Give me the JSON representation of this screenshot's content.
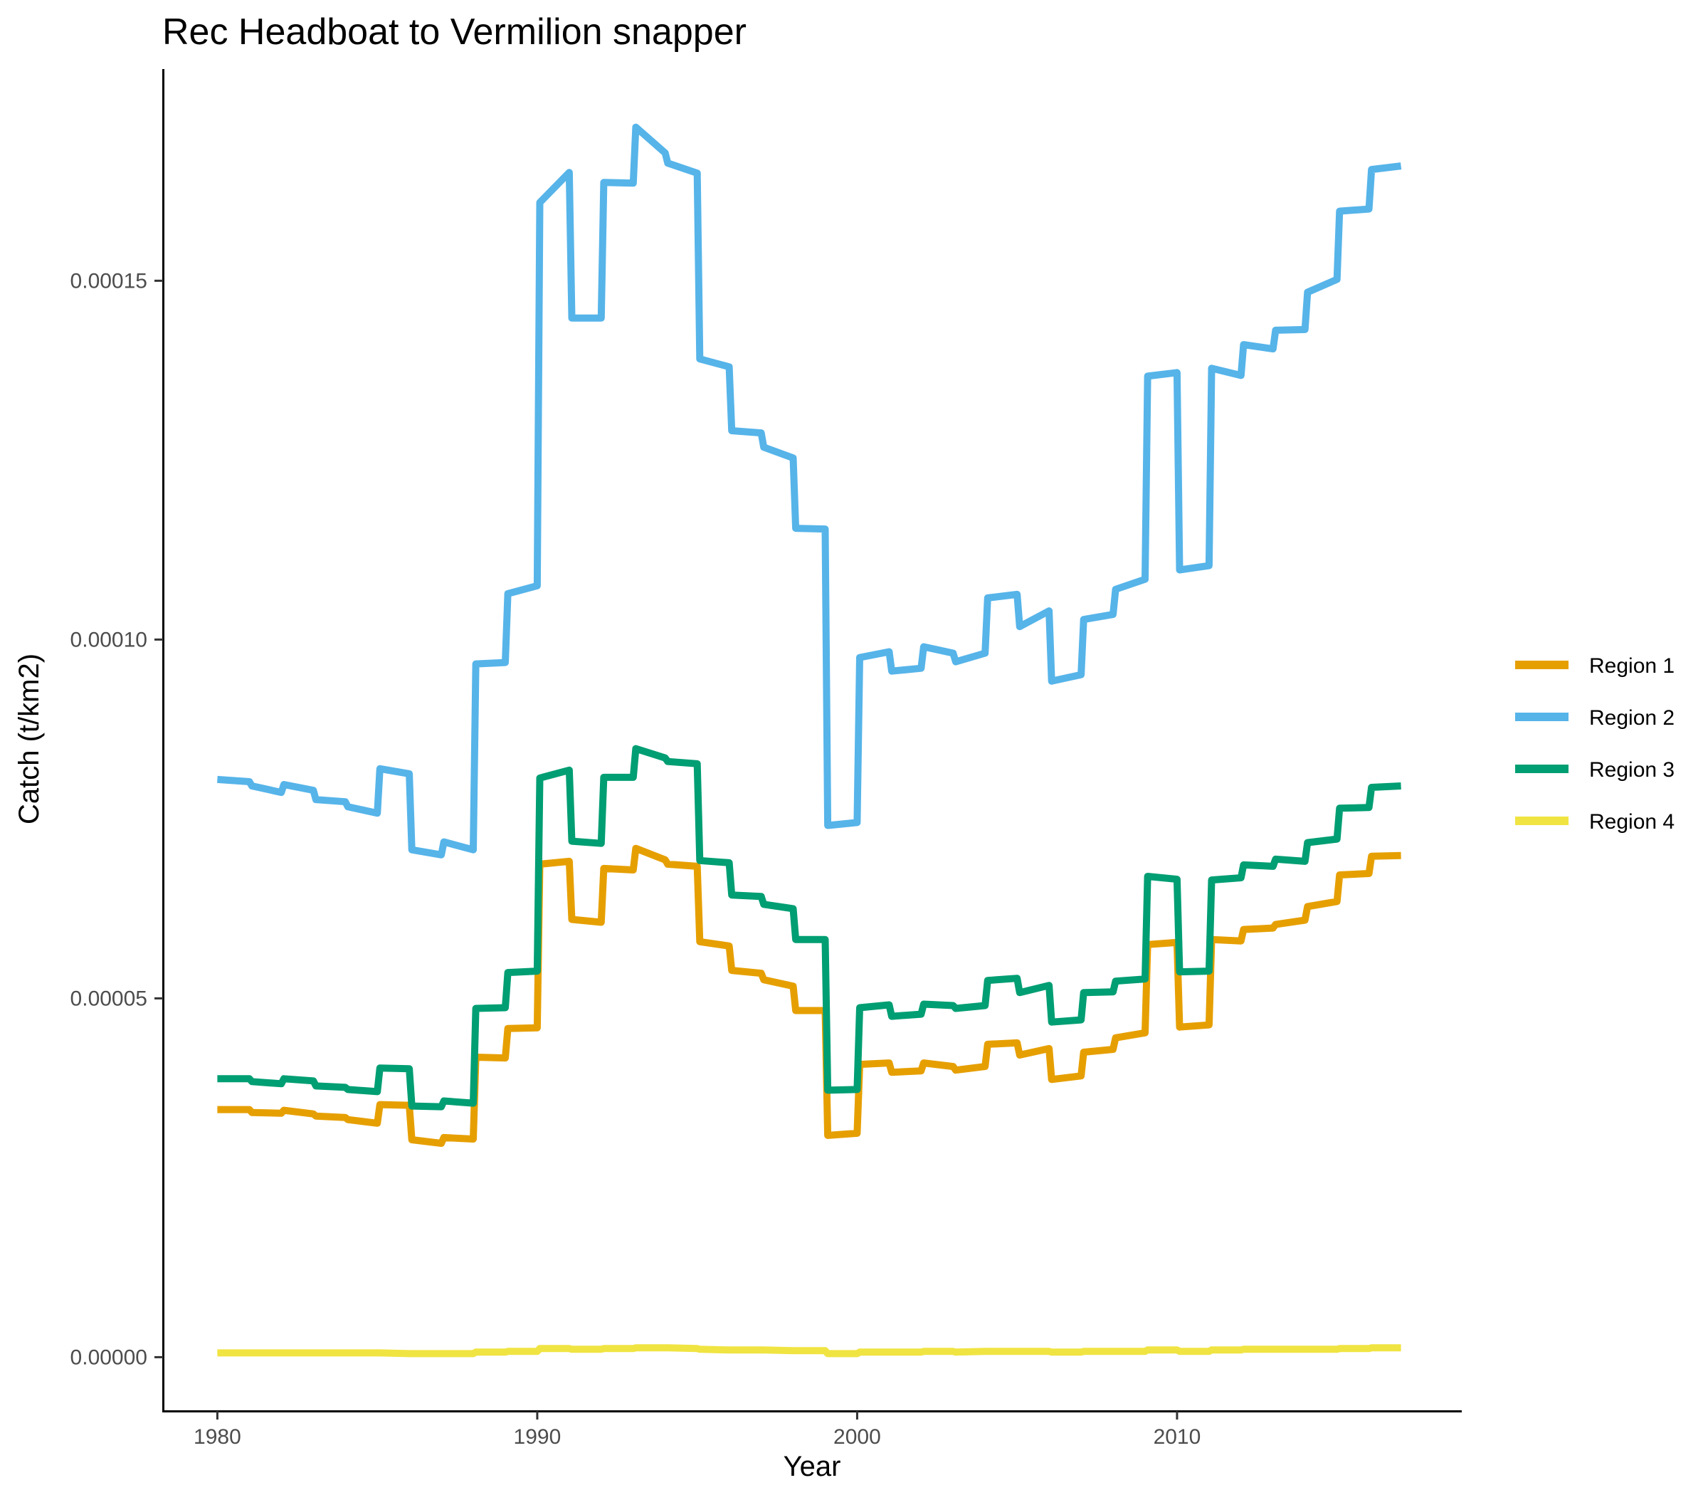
{
  "chart_data": {
    "type": "line",
    "title": "Rec Headboat to Vermilion snapper",
    "xlabel": "Year",
    "ylabel": "Catch (t/km2)",
    "xlim": [
      1978.3,
      2018.9
    ],
    "ylim": [
      -7.5e-06,
      0.0001795
    ],
    "x_ticks": [
      1980,
      1990,
      2000,
      2010
    ],
    "x_tick_labels": [
      "1980",
      "1990",
      "2000",
      "2010"
    ],
    "y_ticks": [
      0,
      5e-05,
      0.0001,
      0.00015
    ],
    "y_tick_labels": [
      "0.00000",
      "0.00005",
      "0.00010",
      "0.00015"
    ],
    "grid": false,
    "legend_position": "right",
    "x": [
      1980.0,
      1981.0,
      1981.08,
      1982.0,
      1982.08,
      1983.0,
      1983.08,
      1984.0,
      1984.08,
      1985.0,
      1985.08,
      1986.0,
      1986.08,
      1987.0,
      1987.08,
      1988.0,
      1988.08,
      1989.0,
      1989.08,
      1990.0,
      1990.08,
      1991.0,
      1991.08,
      1992.0,
      1992.08,
      1993.0,
      1993.08,
      1994.0,
      1994.08,
      1995.0,
      1995.08,
      1996.0,
      1996.08,
      1997.0,
      1997.08,
      1998.0,
      1998.08,
      1999.0,
      1999.08,
      2000.0,
      2000.08,
      2001.0,
      2001.08,
      2002.0,
      2002.08,
      2003.0,
      2003.08,
      2004.0,
      2004.08,
      2005.0,
      2005.08,
      2006.0,
      2006.08,
      2007.0,
      2007.08,
      2008.0,
      2008.08,
      2009.0,
      2009.08,
      2010.0,
      2010.08,
      2011.0,
      2011.08,
      2012.0,
      2012.08,
      2013.0,
      2013.08,
      2014.0,
      2014.08,
      2015.0,
      2015.08,
      2016.0,
      2016.08,
      2017.0
    ],
    "series": [
      {
        "name": "Region 1",
        "color": "#E69F00",
        "values": [
          3.45e-05,
          3.45e-05,
          3.41e-05,
          3.4e-05,
          3.44e-05,
          3.39e-05,
          3.36e-05,
          3.34e-05,
          3.31e-05,
          3.26e-05,
          3.52e-05,
          3.51e-05,
          3.03e-05,
          2.98e-05,
          3.06e-05,
          3.04e-05,
          4.18e-05,
          4.17e-05,
          4.58e-05,
          4.59e-05,
          6.87e-05,
          6.91e-05,
          6.1e-05,
          6.06e-05,
          6.81e-05,
          6.79e-05,
          7.09e-05,
          6.93e-05,
          6.87e-05,
          6.84e-05,
          5.79e-05,
          5.73e-05,
          5.39e-05,
          5.35e-05,
          5.26e-05,
          5.17e-05,
          4.83e-05,
          4.83e-05,
          3.09e-05,
          3.12e-05,
          4.08e-05,
          4.1e-05,
          3.97e-05,
          3.99e-05,
          4.1e-05,
          4.05e-05,
          4e-05,
          4.05e-05,
          4.36e-05,
          4.38e-05,
          4.21e-05,
          4.3e-05,
          3.87e-05,
          3.92e-05,
          4.25e-05,
          4.29e-05,
          4.45e-05,
          4.52e-05,
          5.75e-05,
          5.78e-05,
          4.6e-05,
          4.63e-05,
          5.82e-05,
          5.8e-05,
          5.96e-05,
          5.98e-05,
          6.03e-05,
          6.09e-05,
          6.28e-05,
          6.35e-05,
          6.72e-05,
          6.74e-05,
          6.98e-05,
          6.99e-05
        ]
      },
      {
        "name": "Region 2",
        "color": "#56B4E9",
        "values": [
          8.05e-05,
          8.02e-05,
          7.96e-05,
          7.87e-05,
          7.98e-05,
          7.9e-05,
          7.77e-05,
          7.74e-05,
          7.67e-05,
          7.58e-05,
          8.2e-05,
          8.13e-05,
          7.07e-05,
          7e-05,
          7.18e-05,
          7.07e-05,
          9.66e-05,
          9.68e-05,
          0.0001064,
          0.0001075,
          0.0001609,
          0.0001651,
          0.0001448,
          0.0001448,
          0.0001637,
          0.0001636,
          0.0001714,
          0.0001678,
          0.0001664,
          0.000165,
          0.0001391,
          0.000138,
          0.0001291,
          0.0001288,
          0.0001268,
          0.0001253,
          0.0001155,
          0.0001154,
          7.41e-05,
          7.45e-05,
          9.75e-05,
          9.83e-05,
          9.56e-05,
          9.6e-05,
          9.9e-05,
          9.81e-05,
          9.69e-05,
          9.81e-05,
          0.0001058,
          0.0001063,
          0.0001018,
          0.000104,
          9.42e-05,
          9.51e-05,
          0.0001028,
          0.0001035,
          0.000107,
          0.0001084,
          0.0001367,
          0.0001372,
          0.0001097,
          0.0001103,
          0.0001378,
          0.0001368,
          0.0001411,
          0.0001405,
          0.0001431,
          0.0001432,
          0.0001484,
          0.0001502,
          0.0001597,
          0.00016,
          0.0001655,
          0.000166
        ]
      },
      {
        "name": "Region 3",
        "color": "#009E73",
        "values": [
          3.88e-05,
          3.88e-05,
          3.84e-05,
          3.81e-05,
          3.88e-05,
          3.85e-05,
          3.78e-05,
          3.76e-05,
          3.73e-05,
          3.7e-05,
          4.03e-05,
          4.02e-05,
          3.5e-05,
          3.49e-05,
          3.57e-05,
          3.54e-05,
          4.86e-05,
          4.87e-05,
          5.36e-05,
          5.38e-05,
          8.07e-05,
          8.18e-05,
          7.19e-05,
          7.16e-05,
          8.08e-05,
          8.08e-05,
          8.48e-05,
          8.35e-05,
          8.3e-05,
          8.27e-05,
          6.92e-05,
          6.89e-05,
          6.44e-05,
          6.42e-05,
          6.31e-05,
          6.25e-05,
          5.82e-05,
          5.82e-05,
          3.72e-05,
          3.73e-05,
          4.87e-05,
          4.91e-05,
          4.75e-05,
          4.78e-05,
          4.92e-05,
          4.9e-05,
          4.86e-05,
          4.9e-05,
          5.25e-05,
          5.28e-05,
          5.08e-05,
          5.18e-05,
          4.67e-05,
          4.7e-05,
          5.08e-05,
          5.09e-05,
          5.24e-05,
          5.27e-05,
          6.7e-05,
          6.66e-05,
          5.37e-05,
          5.38e-05,
          6.65e-05,
          6.68e-05,
          6.86e-05,
          6.84e-05,
          6.94e-05,
          6.91e-05,
          7.17e-05,
          7.22e-05,
          7.65e-05,
          7.66e-05,
          7.94e-05,
          7.96e-05
        ]
      },
      {
        "name": "Region 4",
        "color": "#F0E442",
        "values": [
          6e-07,
          6e-07,
          6e-07,
          6e-07,
          6e-07,
          6e-07,
          6e-07,
          6e-07,
          6e-07,
          6e-07,
          6e-07,
          5e-07,
          5e-07,
          5e-07,
          5e-07,
          5e-07,
          7e-07,
          7e-07,
          8e-07,
          8e-07,
          1.2e-06,
          1.2e-06,
          1.1e-06,
          1.1e-06,
          1.2e-06,
          1.2e-06,
          1.3e-06,
          1.3e-06,
          1.3e-06,
          1.2e-06,
          1.1e-06,
          1e-06,
          1e-06,
          1e-06,
          1e-06,
          9e-07,
          9e-07,
          9e-07,
          5e-07,
          5e-07,
          7e-07,
          7e-07,
          7e-07,
          7e-07,
          8e-07,
          8e-07,
          7e-07,
          8e-07,
          8e-07,
          8e-07,
          8e-07,
          8e-07,
          7e-07,
          7e-07,
          8e-07,
          8e-07,
          8e-07,
          8e-07,
          1e-06,
          1e-06,
          8e-07,
          8e-07,
          1e-06,
          1e-06,
          1.1e-06,
          1.1e-06,
          1.1e-06,
          1.1e-06,
          1.1e-06,
          1.1e-06,
          1.2e-06,
          1.2e-06,
          1.3e-06,
          1.3e-06
        ]
      }
    ]
  }
}
